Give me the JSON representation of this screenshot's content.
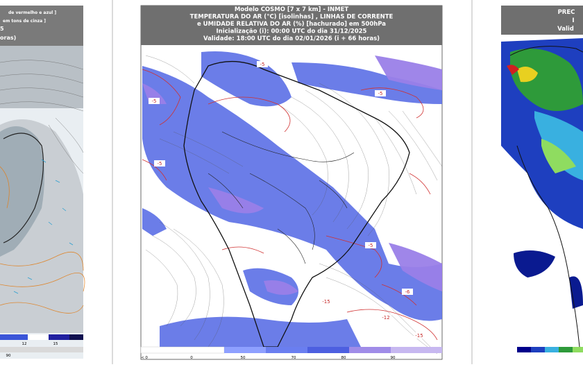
{
  "left_panel": {
    "header": [
      "de vermelho e azul ]",
      "em tons de cinza ]",
      "5",
      "oras)"
    ],
    "colorbar": [
      "12",
      "15"
    ],
    "colorbar2": [
      "90"
    ]
  },
  "center_panel": {
    "header": [
      "Modelo COSMO [7 x 7 km] - INMET",
      "TEMPERATURA DO AR (°C) [isolinhas] , LINHAS DE CORRENTE",
      "e UMIDADE RELATIVA DO AR (%) [hachurado] em 500hPa",
      "Inicialização (i): 00:00 UTC do dia 31/12/2025",
      "Validade: 18:00 UTC do dia 02/01/2026 (i + 66 horas)"
    ],
    "contour_labels": [
      "-5",
      "-5",
      "-5",
      "-5",
      "-5",
      "-6",
      "-12",
      "-15",
      "-15"
    ],
    "colorbar": [
      "< 0",
      "0",
      "50",
      "70",
      "80",
      "90"
    ]
  },
  "right_panel": {
    "header": [
      "PREC",
      "I",
      "Valid"
    ]
  }
}
